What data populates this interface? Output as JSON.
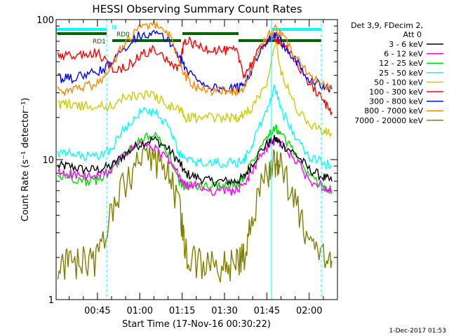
{
  "chart_data": {
    "type": "line",
    "title": "HESSI Observing Summary Count Rates",
    "xlabel": "Start Time (17-Nov-16 00:30:22)",
    "ylabel": "Count Rate (s⁻¹ detector⁻¹)",
    "yscale": "log",
    "ylim": [
      1,
      100
    ],
    "xlim": [
      "00:30:22",
      "02:10:00"
    ],
    "x_ticks": [
      "00:45",
      "01:00",
      "01:15",
      "01:30",
      "01:45",
      "02:00"
    ],
    "y_ticks": [
      "1",
      "10",
      "100"
    ],
    "grid": false,
    "legend_placement": "right",
    "legend_header": [
      "Det 3,9, FDecim 2,",
      "Att 0"
    ],
    "footer": "1-Dec-2017 01:53",
    "x": [
      "00:31",
      "00:35",
      "00:40",
      "00:45",
      "00:50",
      "00:55",
      "01:00",
      "01:05",
      "01:10",
      "01:14",
      "01:16",
      "01:20",
      "01:25",
      "01:30",
      "01:34",
      "01:37",
      "01:40",
      "01:45",
      "01:48",
      "01:50",
      "01:55",
      "02:00",
      "02:05",
      "02:08"
    ],
    "series": [
      {
        "name": "3 - 6 keV",
        "color": "#000000",
        "values": [
          9,
          9,
          8.5,
          8.5,
          9,
          11,
          13,
          14,
          12,
          9.5,
          8,
          7.5,
          7,
          7,
          7,
          7.5,
          9.5,
          13,
          14,
          13,
          11,
          8.5,
          7.5,
          7
        ]
      },
      {
        "name": "6 - 12 keV",
        "color": "#ff00ff",
        "values": [
          8,
          8,
          7.5,
          7.5,
          8.5,
          11,
          13,
          12,
          10,
          7.5,
          6.5,
          6.5,
          6,
          6,
          6,
          6.5,
          8.5,
          12,
          14,
          13,
          10,
          7,
          6.5,
          6
        ]
      },
      {
        "name": "12 - 25 keV",
        "color": "#00dd00",
        "values": [
          7.5,
          7.5,
          7,
          7,
          8.5,
          11,
          14,
          15,
          11,
          7,
          6.5,
          6.5,
          6.5,
          6.5,
          6.5,
          7.5,
          10,
          15,
          17,
          15,
          11,
          7.5,
          6.5,
          6
        ]
      },
      {
        "name": "25 - 50 keV",
        "color": "#00ffff",
        "values": [
          11,
          11,
          10.5,
          10.5,
          12,
          17,
          22,
          22,
          17,
          11,
          10,
          9.5,
          9.5,
          9.5,
          9.5,
          10,
          13,
          22,
          33,
          22,
          15,
          10.5,
          9.5,
          9
        ]
      },
      {
        "name": "50 - 100 keV",
        "color": "#cccc00",
        "values": [
          25,
          25,
          24,
          24,
          24,
          28,
          29,
          29,
          24,
          23,
          20,
          20,
          20,
          20,
          20,
          21,
          24,
          35,
          70,
          42,
          24,
          18,
          16,
          15
        ]
      },
      {
        "name": "100 - 300 keV",
        "color": "#ff0000",
        "values": [
          55,
          55,
          56,
          58,
          45,
          45,
          55,
          62,
          50,
          44,
          72,
          65,
          62,
          60,
          60,
          40,
          50,
          72,
          75,
          68,
          50,
          35,
          26,
          22
        ]
      },
      {
        "name": "300 - 800 keV",
        "color": "#0000ff",
        "values": [
          38,
          38,
          40,
          42,
          48,
          65,
          78,
          80,
          72,
          55,
          45,
          38,
          33,
          32,
          32,
          35,
          45,
          68,
          78,
          70,
          52,
          38,
          33,
          32
        ]
      },
      {
        "name": "800 - 7000 keV",
        "color": "#ff8800",
        "values": [
          31,
          31,
          33,
          35,
          45,
          70,
          88,
          92,
          80,
          50,
          40,
          33,
          31,
          31,
          31,
          33,
          45,
          75,
          85,
          78,
          55,
          40,
          34,
          33
        ]
      },
      {
        "name": "7000 - 20000 keV",
        "color": "#808000",
        "values": [
          1.9,
          1.8,
          1.9,
          2,
          4,
          7,
          9.5,
          10,
          8,
          4.5,
          2.2,
          1.9,
          1.8,
          1.8,
          1.8,
          2.2,
          4,
          8,
          10,
          9,
          5,
          2.5,
          2,
          1.9
        ]
      }
    ],
    "annotations": [
      {
        "label": "RD0"
      },
      {
        "label": "RD1"
      },
      {
        "label": "N"
      }
    ],
    "overlay_colors": {
      "saa_bars": "#00ffff",
      "night_bars": "#006400",
      "event_lines": "#00ffff"
    }
  }
}
